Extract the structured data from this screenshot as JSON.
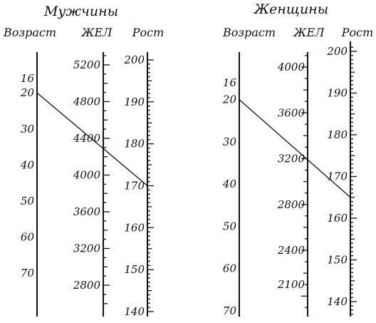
{
  "panels": [
    {
      "title": "Мужчины",
      "scales": [
        {
          "label": "Возраст",
          "min": 10,
          "max": 80,
          "labels": [
            16,
            20,
            30,
            40,
            50,
            60,
            70
          ]
        },
        {
          "label": "ЖЕЛ",
          "min": 2600,
          "max": 5400,
          "labels": [
            5200,
            4800,
            4400,
            4000,
            3600,
            3200,
            2800
          ]
        },
        {
          "label": "Рост",
          "min": 140,
          "max": 200,
          "labels": [
            200,
            190,
            180,
            170,
            160,
            150,
            140
          ]
        }
      ],
      "example": {
        "age": 20,
        "vc": 4400,
        "height": 170
      }
    },
    {
      "title": "Женщины",
      "scales": [
        {
          "label": "Возраст",
          "min": 10,
          "max": 70,
          "labels": [
            16,
            20,
            30,
            40,
            50,
            60,
            70
          ]
        },
        {
          "label": "ЖЕЛ",
          "min": 1900,
          "max": 4200,
          "labels": [
            4000,
            3600,
            3200,
            2800,
            2400,
            2100
          ]
        },
        {
          "label": "Рост",
          "min": 137,
          "max": 201,
          "labels": [
            200,
            190,
            180,
            170,
            160,
            150,
            140
          ]
        }
      ],
      "example": {
        "age": 20,
        "vc": 3200,
        "height": 165
      }
    }
  ]
}
